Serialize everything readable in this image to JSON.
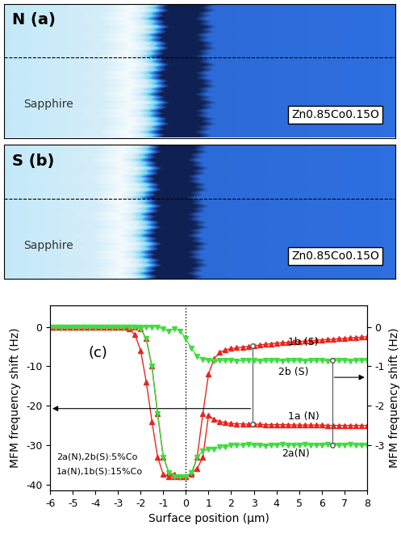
{
  "images": [
    {
      "label": "N (a)",
      "substrate": "Sapphire",
      "film": "Zn0.85Co0.15O"
    },
    {
      "label": "S (b)",
      "substrate": "Sapphire",
      "film": "Zn0.85Co0.15O"
    }
  ],
  "chart_data": {
    "type": "line",
    "panel_label": "(c)",
    "xlabel": "Surface position (μm)",
    "ylabel": "MFM frequency shift (Hz)",
    "y2label": "MFM frequency shift (Hz)",
    "xlim": [
      -6,
      8
    ],
    "xticks": [
      -6,
      -5,
      -4,
      -3,
      -2,
      -1,
      0,
      1,
      2,
      3,
      4,
      5,
      6,
      7,
      8
    ],
    "ylim": [
      -41.5,
      5.5
    ],
    "yticks": [
      0,
      -10,
      -20,
      -30,
      -40
    ],
    "y2lim": [
      -4.15,
      0.55
    ],
    "y2ticks": [
      0,
      -1,
      -2,
      -3
    ],
    "vline": 0,
    "annotations": [
      "2a(N),2b(S):5%Co",
      "1a(N),1b(S):15%Co"
    ],
    "x": [
      -6,
      -5.75,
      -5.5,
      -5.25,
      -5,
      -4.75,
      -4.5,
      -4.25,
      -4,
      -3.75,
      -3.5,
      -3.25,
      -3,
      -2.75,
      -2.5,
      -2.25,
      -2,
      -1.75,
      -1.5,
      -1.25,
      -1,
      -0.75,
      -0.5,
      -0.25,
      0,
      0.25,
      0.5,
      0.75,
      1,
      1.25,
      1.5,
      1.75,
      2,
      2.25,
      2.5,
      2.75,
      3,
      3.25,
      3.5,
      3.75,
      4,
      4.25,
      4.5,
      4.75,
      5,
      5.25,
      5.5,
      5.75,
      6,
      6.25,
      6.5,
      6.75,
      7,
      7.25,
      7.5,
      7.75,
      8
    ],
    "series": [
      {
        "name": "1a (N)",
        "color": "#e8261e",
        "marker": "triangle_up",
        "line_style": "solid",
        "axis": "y",
        "values": [
          0,
          0,
          0,
          0,
          0,
          0,
          0,
          0,
          0,
          0,
          0,
          0,
          0,
          0,
          -0.5,
          -2,
          -6,
          -14,
          -24,
          -33,
          -37.5,
          -38,
          -38,
          -38,
          -38,
          -37,
          -36,
          -33,
          -22.5,
          -23.5,
          -24,
          -24.3,
          -24.5,
          -24.6,
          -24.6,
          -24.7,
          -24.7,
          -24.7,
          -24.8,
          -24.8,
          -24.8,
          -24.8,
          -24.8,
          -24.9,
          -24.9,
          -24.9,
          -24.9,
          -24.9,
          -24.9,
          -25,
          -25,
          -25,
          -25,
          -25,
          -25,
          -25,
          -25
        ]
      },
      {
        "name": "1b (S)",
        "color": "#e8261e",
        "marker": "triangle_up",
        "line_style": "solid",
        "axis": "y",
        "values": [
          0,
          0,
          0,
          0,
          0,
          0,
          0,
          0,
          0,
          0,
          0,
          0,
          0,
          0,
          0,
          0,
          -0.5,
          -3,
          -10,
          -22,
          -33,
          -37,
          -37.5,
          -38,
          -38,
          -37.5,
          -33,
          -22,
          -12,
          -8,
          -6.5,
          -5.8,
          -5.5,
          -5.3,
          -5.1,
          -5.0,
          -4.8,
          -4.6,
          -4.4,
          -4.3,
          -4.1,
          -4.0,
          -3.9,
          -3.8,
          -3.7,
          -3.6,
          -3.5,
          -3.4,
          -3.3,
          -3.2,
          -3.1,
          -3.0,
          -2.9,
          -2.8,
          -2.7,
          -2.6,
          -2.5
        ]
      },
      {
        "name": "2a(N)",
        "color": "#3fdc3f",
        "marker": "triangle_down",
        "line_style": "solid",
        "axis": "y2",
        "values": [
          0,
          0,
          0,
          0,
          0,
          0,
          0,
          0,
          0,
          0,
          0,
          0,
          0,
          0,
          0,
          0,
          -0.05,
          -0.3,
          -1.0,
          -2.2,
          -3.3,
          -3.7,
          -3.8,
          -3.8,
          -3.8,
          -3.7,
          -3.3,
          -3.15,
          -3.1,
          -3.1,
          -3.05,
          -3.05,
          -3.0,
          -3.0,
          -3.0,
          -2.98,
          -3.0,
          -3.0,
          -3.02,
          -3.0,
          -3.0,
          -2.98,
          -3.0,
          -3.0,
          -3.0,
          -2.98,
          -3.0,
          -3.0,
          -3.0,
          -2.98,
          -3.0,
          -3.0,
          -3.0,
          -2.98,
          -3.0,
          -3.0,
          -3.0
        ]
      },
      {
        "name": "2b (S)",
        "color": "#3fdc3f",
        "marker": "triangle_down",
        "line_style": "solid",
        "axis": "y2",
        "values": [
          0,
          0,
          0,
          0,
          0,
          0,
          0,
          0,
          0,
          0,
          0,
          0,
          0,
          0,
          0,
          0,
          0,
          0,
          0,
          0,
          -0.05,
          -0.1,
          -0.05,
          -0.1,
          -0.3,
          -0.55,
          -0.75,
          -0.82,
          -0.84,
          -0.86,
          -0.85,
          -0.85,
          -0.84,
          -0.86,
          -0.85,
          -0.85,
          -0.84,
          -0.86,
          -0.85,
          -0.85,
          -0.84,
          -0.86,
          -0.85,
          -0.85,
          -0.84,
          -0.86,
          -0.85,
          -0.85,
          -0.84,
          -0.86,
          -0.85,
          -0.85,
          -0.84,
          -0.86,
          -0.85,
          -0.85,
          -0.84
        ]
      }
    ]
  }
}
